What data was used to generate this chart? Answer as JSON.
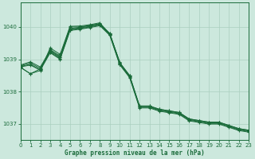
{
  "title": "Graphe pression niveau de la mer (hPa)",
  "bg_color": "#cce8dd",
  "grid_color": "#aacfbf",
  "line_color": "#1a6b3a",
  "xlim": [
    0,
    23
  ],
  "ylim": [
    1036.5,
    1040.75
  ],
  "yticks": [
    1037,
    1038,
    1039,
    1040
  ],
  "xticks": [
    0,
    1,
    2,
    3,
    4,
    5,
    6,
    7,
    8,
    9,
    10,
    11,
    12,
    13,
    14,
    15,
    16,
    17,
    18,
    19,
    20,
    21,
    22,
    23
  ],
  "lines": [
    {
      "x": [
        0,
        1,
        2,
        3,
        4,
        5,
        6,
        7,
        8,
        9,
        10,
        11,
        12,
        13,
        14,
        15,
        16,
        17,
        18,
        19,
        20,
        21,
        22,
        23
      ],
      "y": [
        1038.75,
        1038.55,
        1038.7,
        1039.3,
        1039.1,
        1040.0,
        1040.0,
        1040.05,
        1040.1,
        1039.8,
        1038.9,
        1038.5,
        1037.55,
        1037.55,
        1037.45,
        1037.4,
        1037.35,
        1037.15,
        1037.1,
        1037.05,
        1037.05,
        1036.95,
        1036.85,
        1036.8
      ]
    },
    {
      "x": [
        0,
        1,
        2,
        3,
        4,
        5,
        6,
        7,
        8,
        9,
        10,
        11,
        12,
        13,
        14,
        15,
        16,
        17,
        18,
        19,
        20,
        21,
        22,
        23
      ],
      "y": [
        1038.8,
        1038.88,
        1038.72,
        1039.25,
        1039.05,
        1039.93,
        1039.97,
        1040.02,
        1040.08,
        1039.78,
        1038.87,
        1038.47,
        1037.53,
        1037.53,
        1037.43,
        1037.38,
        1037.33,
        1037.13,
        1037.08,
        1037.03,
        1037.03,
        1036.93,
        1036.83,
        1036.78
      ]
    },
    {
      "x": [
        0,
        1,
        2,
        3,
        4,
        5,
        6,
        7,
        8,
        9,
        10,
        11,
        12,
        13,
        14,
        15,
        16,
        17,
        18,
        19,
        20,
        21,
        22,
        23
      ],
      "y": [
        1038.82,
        1038.92,
        1038.76,
        1039.27,
        1039.07,
        1039.95,
        1039.99,
        1040.04,
        1040.1,
        1039.8,
        1038.89,
        1038.49,
        1037.55,
        1037.55,
        1037.45,
        1037.4,
        1037.35,
        1037.15,
        1037.1,
        1037.05,
        1037.05,
        1036.95,
        1036.85,
        1036.8
      ]
    },
    {
      "x": [
        0,
        1,
        2,
        3,
        4,
        5,
        6,
        7,
        8,
        9,
        10,
        11,
        12,
        13,
        14,
        15,
        16,
        17,
        18,
        19,
        20,
        21,
        22,
        23
      ],
      "y": [
        1038.78,
        1038.84,
        1038.68,
        1039.22,
        1039.02,
        1039.91,
        1039.95,
        1040.0,
        1040.06,
        1039.76,
        1038.85,
        1038.45,
        1037.51,
        1037.51,
        1037.41,
        1037.36,
        1037.31,
        1037.11,
        1037.06,
        1037.01,
        1037.01,
        1036.91,
        1036.81,
        1036.76
      ]
    },
    {
      "x": [
        0,
        1,
        2,
        3,
        4,
        5,
        6,
        7,
        8,
        9,
        10,
        11,
        12,
        13,
        14,
        15,
        16,
        17,
        18,
        19,
        20,
        21,
        22,
        23
      ],
      "y": [
        1038.76,
        1038.82,
        1038.66,
        1039.2,
        1039.0,
        1039.89,
        1039.93,
        1039.98,
        1040.04,
        1039.74,
        1038.83,
        1038.43,
        1037.49,
        1037.49,
        1037.39,
        1037.34,
        1037.29,
        1037.09,
        1037.04,
        1036.99,
        1036.99,
        1036.89,
        1036.79,
        1036.74
      ]
    },
    {
      "x": [
        0,
        1,
        2,
        3,
        4,
        5,
        6,
        7,
        8,
        9,
        10
      ],
      "y": [
        1038.75,
        1038.55,
        1038.65,
        1039.35,
        1039.15,
        1040.02,
        1040.03,
        1040.07,
        1040.13,
        1039.78,
        1038.92
      ]
    }
  ]
}
